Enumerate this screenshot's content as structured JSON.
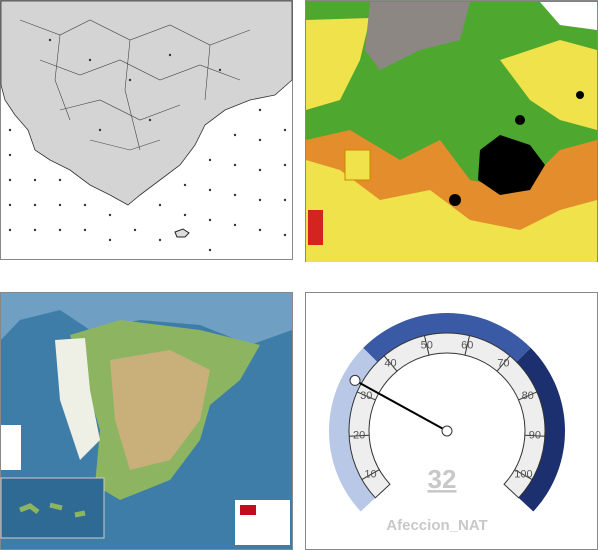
{
  "chart_data": {
    "type": "gauge",
    "title": "Afeccion_NAT",
    "value": 32,
    "ylim": [
      5,
      105
    ],
    "yticks": [
      10,
      20,
      30,
      40,
      50,
      60,
      70,
      80,
      90,
      100
    ],
    "bands": [
      {
        "from": 5,
        "to": 38,
        "color": "#b8c8e6"
      },
      {
        "from": 38,
        "to": 72,
        "color": "#3a5aa5"
      },
      {
        "from": 72,
        "to": 105,
        "color": "#1c2f6e"
      }
    ],
    "needle_color": "#000000"
  }
}
